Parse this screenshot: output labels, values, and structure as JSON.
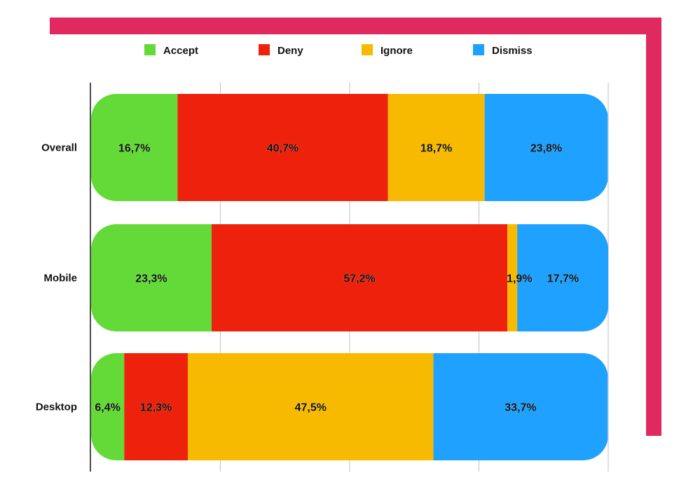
{
  "frame": {
    "accent_color": "#E0295E"
  },
  "chart_data": {
    "type": "bar",
    "orientation": "horizontal",
    "stacked": true,
    "normalized": true,
    "categories": [
      "Overall",
      "Mobile",
      "Desktop"
    ],
    "series": [
      {
        "name": "Accept",
        "color": "#63DA38",
        "values": [
          16.7,
          23.3,
          6.4
        ],
        "labels": [
          "16,7%",
          "23,3%",
          "6,4%"
        ]
      },
      {
        "name": "Deny",
        "color": "#EE220C",
        "values": [
          40.7,
          57.2,
          12.3
        ],
        "labels": [
          "40,7%",
          "57,2%",
          "12,3%"
        ]
      },
      {
        "name": "Ignore",
        "color": "#F8BA00",
        "values": [
          18.7,
          1.9,
          47.5
        ],
        "labels": [
          "18,7%",
          "1,9%",
          "47,5%"
        ]
      },
      {
        "name": "Dismiss",
        "color": "#1EA1FF",
        "values": [
          23.8,
          17.7,
          33.7
        ],
        "labels": [
          "23,8%",
          "17,7%",
          "33,7%"
        ]
      }
    ],
    "xlim": [
      0,
      100
    ],
    "grid": true,
    "legend": "top",
    "title": "",
    "xlabel": "",
    "ylabel": ""
  }
}
